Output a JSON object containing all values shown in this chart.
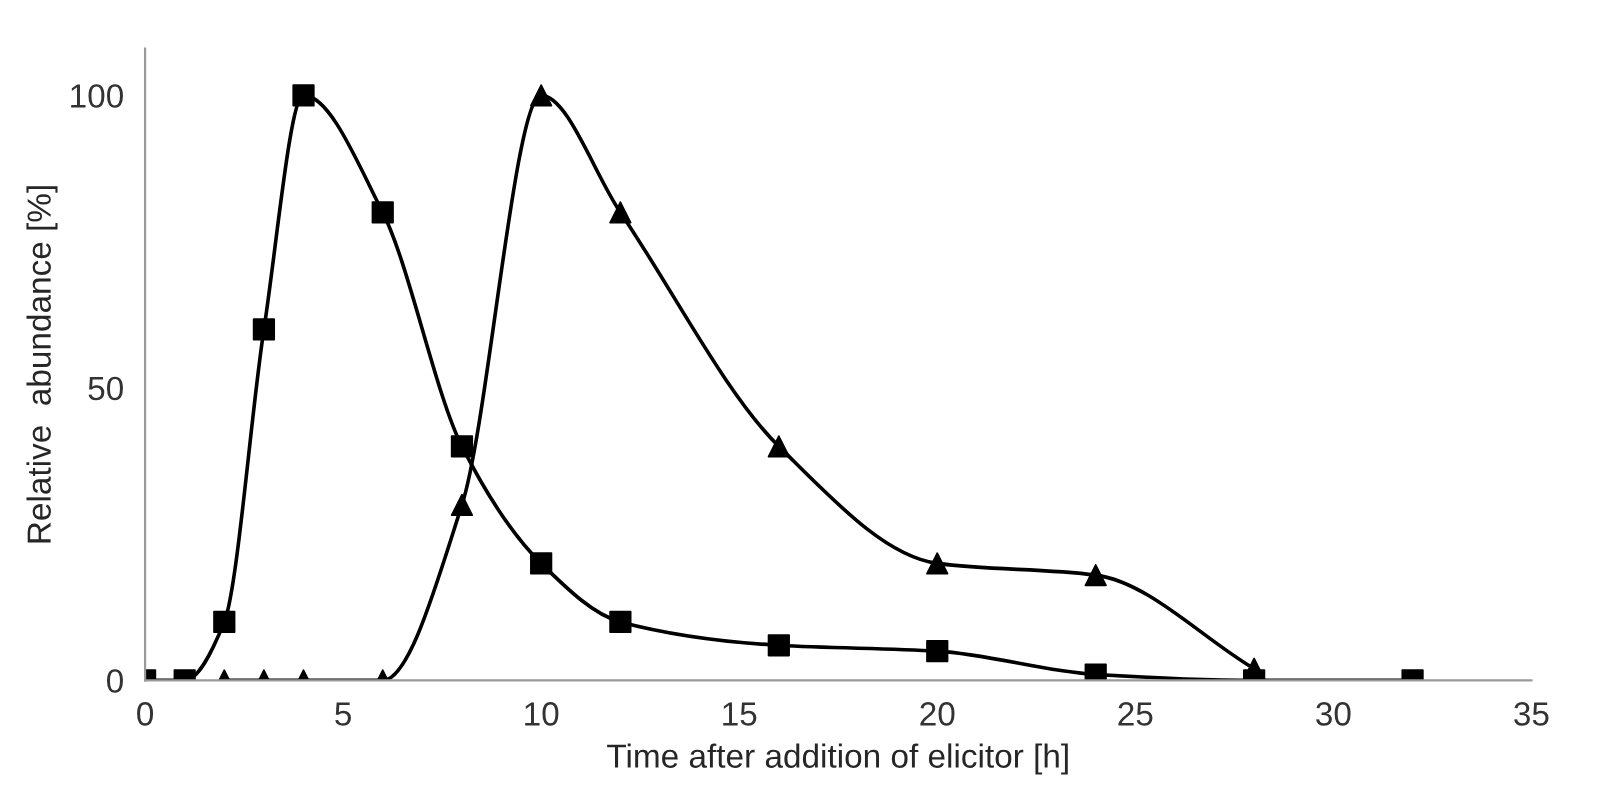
{
  "chart_data": {
    "type": "line",
    "xlabel": "Time after addition of elicitor [h]",
    "ylabel": "Relative  abundance [%]",
    "xlim": [
      0,
      35
    ],
    "xticks": [
      0,
      5,
      10,
      15,
      20,
      25,
      30,
      35
    ],
    "ylim": [
      0,
      108
    ],
    "yticks": [
      0,
      50,
      100
    ],
    "grid": false,
    "line_style": "solid",
    "series": [
      {
        "color": "#000000",
        "marker": "square",
        "x": [
          0,
          1,
          2,
          3,
          4,
          6,
          8,
          10,
          12,
          16,
          20,
          24,
          28,
          32
        ],
        "values": [
          0,
          0,
          10,
          60,
          100,
          80,
          40,
          20,
          10,
          6,
          5,
          1,
          0,
          0
        ]
      },
      {
        "color": "#000000",
        "marker": "triangle",
        "x": [
          2,
          3,
          4,
          6,
          8,
          10,
          12,
          16,
          20,
          24,
          28
        ],
        "values": [
          0,
          0,
          0,
          0,
          30,
          100,
          80,
          40,
          20,
          18,
          2
        ]
      }
    ]
  }
}
